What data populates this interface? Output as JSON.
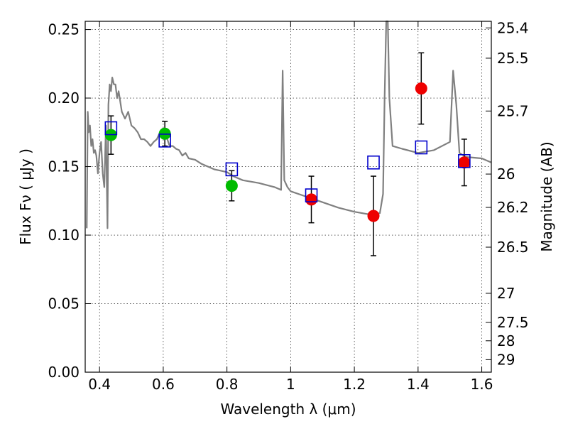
{
  "chart_data": {
    "type": "scatter",
    "title": "",
    "xlabel": "Wavelength  λ (μm)",
    "ylabel": "Flux  Fν  ( μJy )",
    "y2label": "Magnitude (AB)",
    "xlim": [
      0.355,
      1.63
    ],
    "ylim": [
      0.0,
      0.256
    ],
    "grid": true,
    "legend": "none",
    "x_ticks": [
      "0.4",
      "0.6",
      "0.8",
      "1",
      "1.2",
      "1.4",
      "1.6"
    ],
    "x_tick_values": [
      0.4,
      0.6,
      0.8,
      1.0,
      1.2,
      1.4,
      1.6
    ],
    "y_ticks": [
      "0.00",
      "0.05",
      "0.10",
      "0.15",
      "0.20",
      "0.25"
    ],
    "y_tick_values": [
      0.0,
      0.05,
      0.1,
      0.15,
      0.2,
      0.25
    ],
    "y2_ticks": [
      "25.4",
      "25.5",
      "25.7",
      "26",
      "26.2",
      "26.5",
      "27",
      "27.5",
      "28",
      "29"
    ],
    "y2_tick_values": [
      25.4,
      25.5,
      25.7,
      26.0,
      26.2,
      26.5,
      27.0,
      27.5,
      28.0,
      29.0
    ],
    "colors": {
      "model": "#808080",
      "green_points": "#00bb00",
      "red_points": "#ee0000",
      "model_boxes": "#0000cc",
      "errorbars": "#000000"
    },
    "series": [
      {
        "kind": "model_spectrum",
        "x": [
          0.36,
          0.363,
          0.366,
          0.37,
          0.374,
          0.378,
          0.382,
          0.386,
          0.39,
          0.395,
          0.4,
          0.405,
          0.41,
          0.415,
          0.42,
          0.425,
          0.428,
          0.432,
          0.436,
          0.44,
          0.445,
          0.45,
          0.455,
          0.46,
          0.47,
          0.48,
          0.49,
          0.5,
          0.51,
          0.52,
          0.53,
          0.54,
          0.55,
          0.56,
          0.57,
          0.58,
          0.59,
          0.6,
          0.61,
          0.62,
          0.63,
          0.64,
          0.65,
          0.66,
          0.67,
          0.68,
          0.7,
          0.72,
          0.74,
          0.76,
          0.78,
          0.8,
          0.82,
          0.85,
          0.9,
          0.95,
          0.97,
          0.975,
          0.98,
          0.99,
          1.0,
          1.05,
          1.1,
          1.15,
          1.2,
          1.25,
          1.28,
          1.29,
          1.295,
          1.3,
          1.305,
          1.31,
          1.32,
          1.35,
          1.4,
          1.45,
          1.5,
          1.51,
          1.52,
          1.53,
          1.55,
          1.6,
          1.63
        ],
        "y": [
          0.105,
          0.19,
          0.175,
          0.18,
          0.165,
          0.17,
          0.16,
          0.162,
          0.158,
          0.145,
          0.16,
          0.168,
          0.145,
          0.135,
          0.18,
          0.105,
          0.195,
          0.21,
          0.205,
          0.215,
          0.21,
          0.21,
          0.2,
          0.205,
          0.19,
          0.185,
          0.19,
          0.18,
          0.178,
          0.175,
          0.17,
          0.17,
          0.168,
          0.165,
          0.168,
          0.17,
          0.175,
          0.178,
          0.172,
          0.165,
          0.165,
          0.163,
          0.162,
          0.158,
          0.16,
          0.156,
          0.155,
          0.152,
          0.15,
          0.148,
          0.147,
          0.146,
          0.143,
          0.14,
          0.138,
          0.135,
          0.133,
          0.22,
          0.14,
          0.135,
          0.132,
          0.128,
          0.124,
          0.12,
          0.117,
          0.115,
          0.116,
          0.13,
          0.2,
          0.256,
          0.256,
          0.2,
          0.165,
          0.163,
          0.16,
          0.162,
          0.168,
          0.22,
          0.195,
          0.16,
          0.157,
          0.156,
          0.153
        ]
      },
      {
        "kind": "model_boxes",
        "x": [
          0.436,
          0.605,
          0.815,
          1.065,
          1.26,
          1.41,
          1.545
        ],
        "y": [
          0.178,
          0.169,
          0.148,
          0.129,
          0.153,
          0.164,
          0.154
        ]
      },
      {
        "kind": "green_points",
        "x": [
          0.436,
          0.605,
          0.815
        ],
        "y": [
          0.173,
          0.174,
          0.136
        ],
        "err": [
          0.014,
          0.009,
          0.011
        ]
      },
      {
        "kind": "red_points",
        "x": [
          1.065,
          1.26,
          1.41,
          1.545
        ],
        "y": [
          0.126,
          0.114,
          0.207,
          0.153
        ],
        "err": [
          0.017,
          0.029,
          0.026,
          0.017
        ]
      }
    ]
  }
}
